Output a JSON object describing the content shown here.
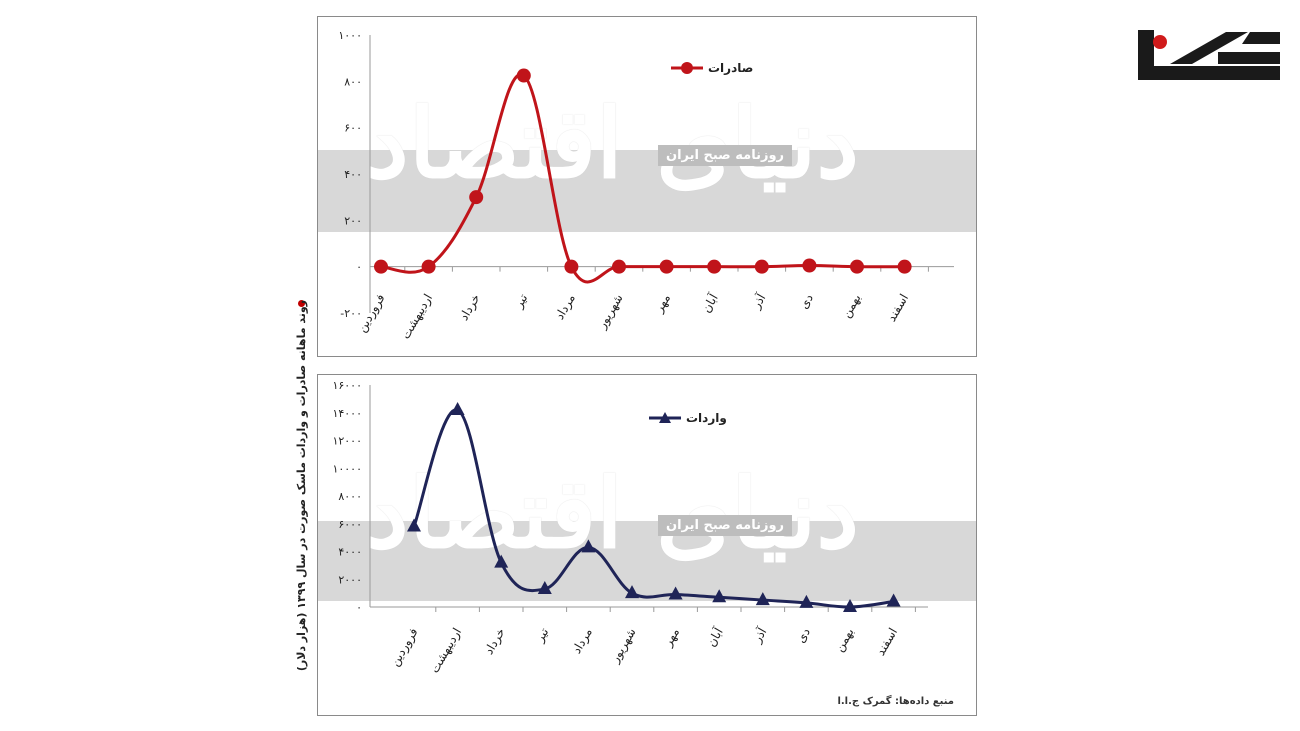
{
  "side_title": "روند ماهانه صادرات و واردات ماسک صورت در سال ۱۳۹۹ (هزار دلار)",
  "watermark": {
    "script": "دنیای اقتصاد",
    "label": "روزنامه صبح ایران"
  },
  "source_note": "منبع داده‌ها: گمرک ج.ا.ا",
  "colors": {
    "export": "#c0141a",
    "import": "#1f2457",
    "band": "#d8d8d8"
  },
  "chart_data": [
    {
      "type": "line",
      "categories": [
        "فروردین",
        "اردیبهشت",
        "خرداد",
        "تیر",
        "مرداد",
        "شهریور",
        "مهر",
        "آبان",
        "آذر",
        "دی",
        "بهمن",
        "اسفند"
      ],
      "series": [
        {
          "name": "صادرات",
          "values": [
            0,
            0,
            300,
            825,
            0,
            0,
            0,
            0,
            0,
            5,
            0,
            0
          ]
        }
      ],
      "ylim": [
        -200,
        1000
      ],
      "yticks": [
        -200,
        0,
        200,
        400,
        600,
        800,
        1000
      ],
      "ytick_labels": [
        "-۲۰۰",
        "۰",
        "۲۰۰",
        "۴۰۰",
        "۶۰۰",
        "۸۰۰",
        "۱۰۰۰"
      ],
      "legend": "top-center",
      "marker": "circle"
    },
    {
      "type": "line",
      "categories": [
        "فروردین",
        "اردیبهشت",
        "خرداد",
        "تیر",
        "مرداد",
        "شهریور",
        "مهر",
        "آبان",
        "آذر",
        "دی",
        "بهمن",
        "اسفند"
      ],
      "series": [
        {
          "name": "واردات",
          "values": [
            5800,
            14200,
            3200,
            1300,
            4300,
            1000,
            900,
            700,
            500,
            300,
            0,
            400
          ]
        }
      ],
      "ylim": [
        0,
        16000
      ],
      "yticks": [
        0,
        2000,
        4000,
        6000,
        8000,
        10000,
        12000,
        14000,
        16000
      ],
      "ytick_labels": [
        "۰",
        "۲۰۰۰",
        "۴۰۰۰",
        "۶۰۰۰",
        "۸۰۰۰",
        "۱۰۰۰۰",
        "۱۲۰۰۰",
        "۱۴۰۰۰",
        "۱۶۰۰۰"
      ],
      "legend": "top-center",
      "marker": "triangle"
    }
  ]
}
